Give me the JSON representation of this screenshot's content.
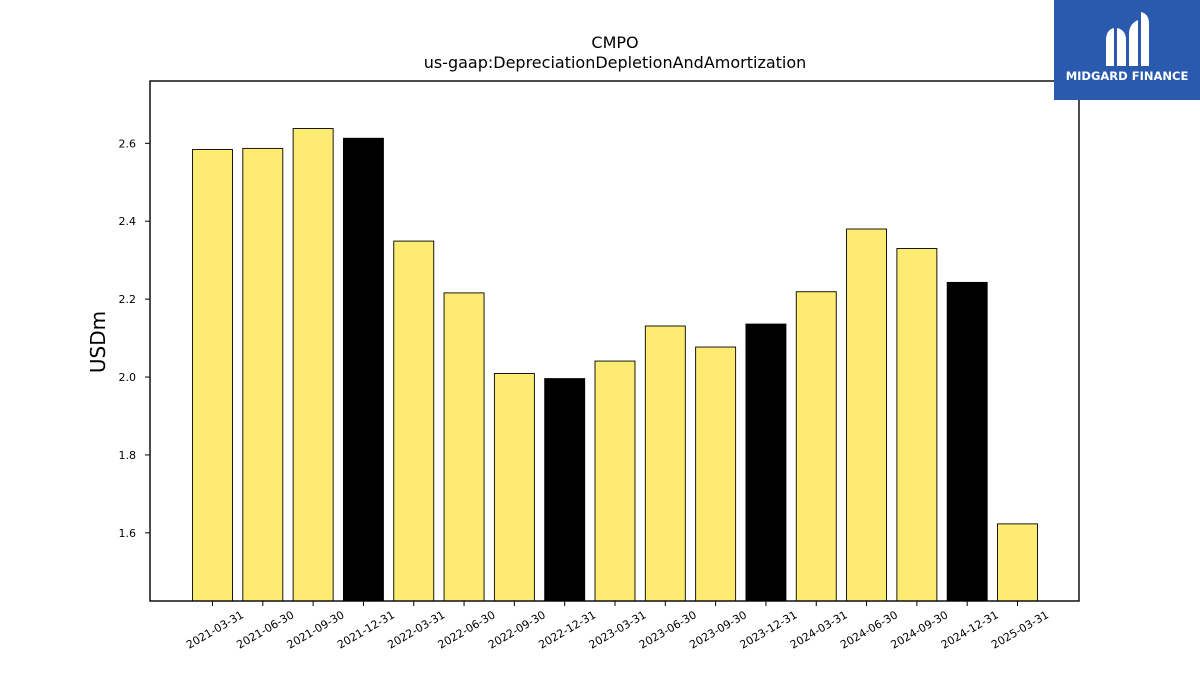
{
  "chart_data": {
    "type": "bar",
    "title": "CMPO",
    "subtitle": "us-gaap:DepreciationDepletionAndAmortization",
    "ylabel": "USDm",
    "xlabel": "",
    "ylim": [
      1.425,
      2.76
    ],
    "yticks": [
      "1.6",
      "1.8",
      "2.0",
      "2.2",
      "2.4",
      "2.6"
    ],
    "categories": [
      "2021-03-31",
      "2021-06-30",
      "2021-09-30",
      "2021-12-31",
      "2022-03-31",
      "2022-06-30",
      "2022-09-30",
      "2022-12-31",
      "2023-03-31",
      "2023-06-30",
      "2023-09-30",
      "2023-12-31",
      "2024-03-31",
      "2024-06-30",
      "2024-09-30",
      "2024-12-31",
      "2025-03-31"
    ],
    "values": [
      2.584,
      2.587,
      2.638,
      2.613,
      2.349,
      2.216,
      2.009,
      1.996,
      2.041,
      2.131,
      2.077,
      2.136,
      2.219,
      2.38,
      2.33,
      2.243,
      1.623
    ],
    "bar_colors": [
      "#FDEB72",
      "#FDEB72",
      "#FDEB72",
      "#000000",
      "#FDEB72",
      "#FDEB72",
      "#FDEB72",
      "#000000",
      "#FDEB72",
      "#FDEB72",
      "#FDEB72",
      "#000000",
      "#FDEB72",
      "#FDEB72",
      "#FDEB72",
      "#000000",
      "#FDEB72"
    ],
    "grid": false,
    "legend": "none"
  },
  "logo": {
    "text": "MIDGARD FINANCE",
    "icon": "midgard-m-logo-icon",
    "background": "#2A5AAE"
  }
}
